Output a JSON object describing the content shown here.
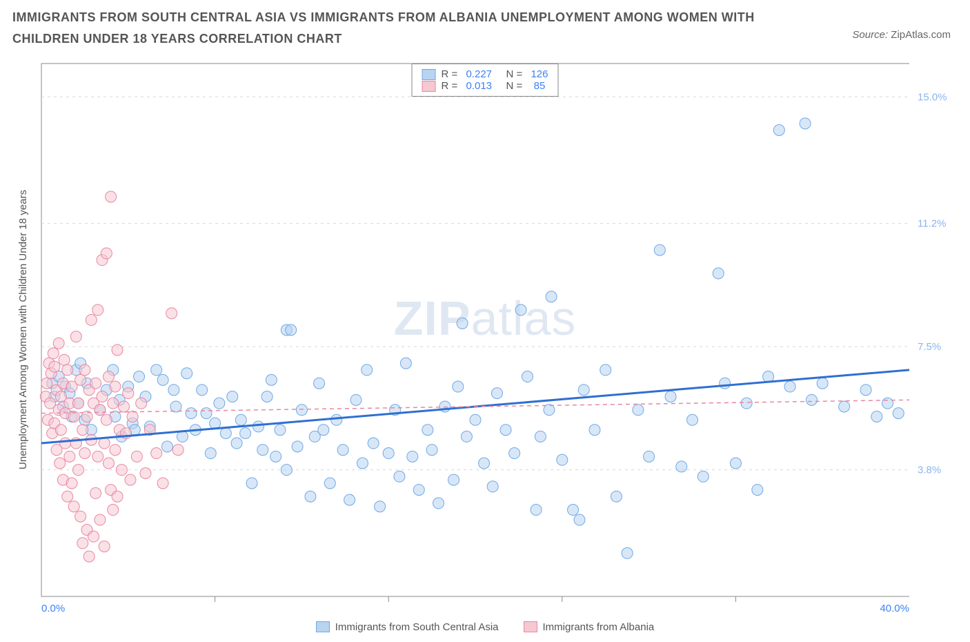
{
  "title": "IMMIGRANTS FROM SOUTH CENTRAL ASIA VS IMMIGRANTS FROM ALBANIA UNEMPLOYMENT AMONG WOMEN WITH CHILDREN UNDER 18 YEARS CORRELATION CHART",
  "source_label": "Source: ",
  "source_value": "ZipAtlas.com",
  "ylabel": "Unemployment Among Women with Children Under 18 years",
  "watermark_a": "ZIP",
  "watermark_b": "atlas",
  "plot": {
    "xlim": [
      0,
      40
    ],
    "ylim": [
      0,
      16
    ],
    "x_axis": {
      "min_label": "0.0%",
      "max_label": "40.0%",
      "grid_step": 8
    },
    "y_axis": {
      "ticks": [
        3.8,
        7.5,
        11.2,
        15.0
      ],
      "tick_labels": [
        "3.8%",
        "7.5%",
        "11.2%",
        "15.0%"
      ]
    },
    "grid_color": "#d8d8d8",
    "background": "#ffffff",
    "marker_radius": 8,
    "marker_stroke_width": 1,
    "series": [
      {
        "key": "sca",
        "name": "Immigrants from South Central Asia",
        "fill": "#b8d4f1",
        "stroke": "#6fa8e6",
        "fill_opacity": 0.55,
        "R": "0.227",
        "N": "126",
        "trend": {
          "y_at_x0": 4.6,
          "y_at_xmax": 6.8,
          "color": "#2f6fd0",
          "width": 3,
          "dash": ""
        },
        "points": [
          [
            0.5,
            6.4
          ],
          [
            0.6,
            6.0
          ],
          [
            0.8,
            6.6
          ],
          [
            1.0,
            5.7
          ],
          [
            1.1,
            6.3
          ],
          [
            1.3,
            6.1
          ],
          [
            1.4,
            5.4
          ],
          [
            1.6,
            6.8
          ],
          [
            1.7,
            5.8
          ],
          [
            1.8,
            7.0
          ],
          [
            2.0,
            5.3
          ],
          [
            2.1,
            6.4
          ],
          [
            2.3,
            5.0
          ],
          [
            2.7,
            5.6
          ],
          [
            3.0,
            6.2
          ],
          [
            3.3,
            6.8
          ],
          [
            3.4,
            5.4
          ],
          [
            3.6,
            5.9
          ],
          [
            3.7,
            4.8
          ],
          [
            4.0,
            6.3
          ],
          [
            4.2,
            5.2
          ],
          [
            4.3,
            5.0
          ],
          [
            4.5,
            6.6
          ],
          [
            4.8,
            6.0
          ],
          [
            5.0,
            5.1
          ],
          [
            5.3,
            6.8
          ],
          [
            5.6,
            6.5
          ],
          [
            5.8,
            4.5
          ],
          [
            6.1,
            6.2
          ],
          [
            6.2,
            5.7
          ],
          [
            6.5,
            4.8
          ],
          [
            6.7,
            6.7
          ],
          [
            6.9,
            5.5
          ],
          [
            7.1,
            5.0
          ],
          [
            7.4,
            6.2
          ],
          [
            7.6,
            5.5
          ],
          [
            7.8,
            4.3
          ],
          [
            8.0,
            5.2
          ],
          [
            8.2,
            5.8
          ],
          [
            8.5,
            4.9
          ],
          [
            8.8,
            6.0
          ],
          [
            9.0,
            4.6
          ],
          [
            9.2,
            5.3
          ],
          [
            9.4,
            4.9
          ],
          [
            9.7,
            3.4
          ],
          [
            10.0,
            5.1
          ],
          [
            10.2,
            4.4
          ],
          [
            10.4,
            6.0
          ],
          [
            10.6,
            6.5
          ],
          [
            10.8,
            4.2
          ],
          [
            11.0,
            5.0
          ],
          [
            11.3,
            3.8
          ],
          [
            11.3,
            8.0
          ],
          [
            11.5,
            8.0
          ],
          [
            11.8,
            4.5
          ],
          [
            12.0,
            5.6
          ],
          [
            12.4,
            3.0
          ],
          [
            12.6,
            4.8
          ],
          [
            12.8,
            6.4
          ],
          [
            13.0,
            5.0
          ],
          [
            13.3,
            3.4
          ],
          [
            13.6,
            5.3
          ],
          [
            13.9,
            4.4
          ],
          [
            14.2,
            2.9
          ],
          [
            14.5,
            5.9
          ],
          [
            14.8,
            4.0
          ],
          [
            15.0,
            6.8
          ],
          [
            15.3,
            4.6
          ],
          [
            15.6,
            2.7
          ],
          [
            16.0,
            4.3
          ],
          [
            16.3,
            5.6
          ],
          [
            16.5,
            3.6
          ],
          [
            16.8,
            7.0
          ],
          [
            17.1,
            4.2
          ],
          [
            17.4,
            3.2
          ],
          [
            17.8,
            5.0
          ],
          [
            18.0,
            4.4
          ],
          [
            18.3,
            2.8
          ],
          [
            18.6,
            5.7
          ],
          [
            19.0,
            3.5
          ],
          [
            19.2,
            6.3
          ],
          [
            19.4,
            8.2
          ],
          [
            19.6,
            4.8
          ],
          [
            20.0,
            5.3
          ],
          [
            20.4,
            4.0
          ],
          [
            20.8,
            3.3
          ],
          [
            21.0,
            6.1
          ],
          [
            21.4,
            5.0
          ],
          [
            21.8,
            4.3
          ],
          [
            22.1,
            8.6
          ],
          [
            22.4,
            6.6
          ],
          [
            22.8,
            2.6
          ],
          [
            23.0,
            4.8
          ],
          [
            23.4,
            5.6
          ],
          [
            23.5,
            9.0
          ],
          [
            24.0,
            4.1
          ],
          [
            24.5,
            2.6
          ],
          [
            24.8,
            2.3
          ],
          [
            25.0,
            6.2
          ],
          [
            25.5,
            5.0
          ],
          [
            26.0,
            6.8
          ],
          [
            26.5,
            3.0
          ],
          [
            27.0,
            1.3
          ],
          [
            27.5,
            5.6
          ],
          [
            28.0,
            4.2
          ],
          [
            28.5,
            10.4
          ],
          [
            29.0,
            6.0
          ],
          [
            29.5,
            3.9
          ],
          [
            30.0,
            5.3
          ],
          [
            30.5,
            3.6
          ],
          [
            31.2,
            9.7
          ],
          [
            31.5,
            6.4
          ],
          [
            32.0,
            4.0
          ],
          [
            32.5,
            5.8
          ],
          [
            33.0,
            3.2
          ],
          [
            33.5,
            6.6
          ],
          [
            34.0,
            14.0
          ],
          [
            34.5,
            6.3
          ],
          [
            35.2,
            14.2
          ],
          [
            35.5,
            5.9
          ],
          [
            36.0,
            6.4
          ],
          [
            37.0,
            5.7
          ],
          [
            38.0,
            6.2
          ],
          [
            38.5,
            5.4
          ],
          [
            39.0,
            5.8
          ],
          [
            39.5,
            5.5
          ]
        ]
      },
      {
        "key": "alb",
        "name": "Immigrants from Albania",
        "fill": "#f6c8d1",
        "stroke": "#e986a2",
        "fill_opacity": 0.55,
        "R": "0.013",
        "N": "85",
        "trend": {
          "y_at_x0": 5.5,
          "y_at_xmax": 5.9,
          "color": "#e986a2",
          "width": 1.5,
          "dash": "6,5"
        },
        "points": [
          [
            0.2,
            6.0
          ],
          [
            0.25,
            6.4
          ],
          [
            0.3,
            5.3
          ],
          [
            0.35,
            7.0
          ],
          [
            0.4,
            5.8
          ],
          [
            0.45,
            6.7
          ],
          [
            0.5,
            4.9
          ],
          [
            0.55,
            7.3
          ],
          [
            0.6,
            5.2
          ],
          [
            0.6,
            6.9
          ],
          [
            0.7,
            4.4
          ],
          [
            0.7,
            6.2
          ],
          [
            0.8,
            5.6
          ],
          [
            0.8,
            7.6
          ],
          [
            0.85,
            4.0
          ],
          [
            0.9,
            6.0
          ],
          [
            0.9,
            5.0
          ],
          [
            1.0,
            6.4
          ],
          [
            1.0,
            3.5
          ],
          [
            1.05,
            7.1
          ],
          [
            1.1,
            5.5
          ],
          [
            1.1,
            4.6
          ],
          [
            1.2,
            6.8
          ],
          [
            1.2,
            3.0
          ],
          [
            1.3,
            5.8
          ],
          [
            1.3,
            4.2
          ],
          [
            1.4,
            6.3
          ],
          [
            1.4,
            3.4
          ],
          [
            1.5,
            5.4
          ],
          [
            1.5,
            2.7
          ],
          [
            1.6,
            7.8
          ],
          [
            1.6,
            4.6
          ],
          [
            1.7,
            5.8
          ],
          [
            1.7,
            3.8
          ],
          [
            1.8,
            6.5
          ],
          [
            1.8,
            2.4
          ],
          [
            1.9,
            5.0
          ],
          [
            1.9,
            1.6
          ],
          [
            2.0,
            4.3
          ],
          [
            2.0,
            6.8
          ],
          [
            2.1,
            5.4
          ],
          [
            2.1,
            2.0
          ],
          [
            2.2,
            6.2
          ],
          [
            2.2,
            1.2
          ],
          [
            2.3,
            4.7
          ],
          [
            2.3,
            8.3
          ],
          [
            2.4,
            5.8
          ],
          [
            2.4,
            1.8
          ],
          [
            2.5,
            6.4
          ],
          [
            2.5,
            3.1
          ],
          [
            2.6,
            4.2
          ],
          [
            2.6,
            8.6
          ],
          [
            2.7,
            5.6
          ],
          [
            2.7,
            2.3
          ],
          [
            2.8,
            6.0
          ],
          [
            2.8,
            10.1
          ],
          [
            2.9,
            4.6
          ],
          [
            2.9,
            1.5
          ],
          [
            3.0,
            5.3
          ],
          [
            3.0,
            10.3
          ],
          [
            3.1,
            4.0
          ],
          [
            3.1,
            6.6
          ],
          [
            3.2,
            3.2
          ],
          [
            3.2,
            12.0
          ],
          [
            3.3,
            5.8
          ],
          [
            3.3,
            2.6
          ],
          [
            3.4,
            6.3
          ],
          [
            3.4,
            4.4
          ],
          [
            3.5,
            3.0
          ],
          [
            3.5,
            7.4
          ],
          [
            3.6,
            5.0
          ],
          [
            3.7,
            3.8
          ],
          [
            3.8,
            5.7
          ],
          [
            3.9,
            4.9
          ],
          [
            4.0,
            6.1
          ],
          [
            4.1,
            3.5
          ],
          [
            4.2,
            5.4
          ],
          [
            4.4,
            4.2
          ],
          [
            4.6,
            5.8
          ],
          [
            4.8,
            3.7
          ],
          [
            5.0,
            5.0
          ],
          [
            5.3,
            4.3
          ],
          [
            5.6,
            3.4
          ],
          [
            6.0,
            8.5
          ],
          [
            6.3,
            4.4
          ]
        ]
      }
    ]
  },
  "legend_stats": {
    "R_label": "R =",
    "N_label": "N ="
  }
}
